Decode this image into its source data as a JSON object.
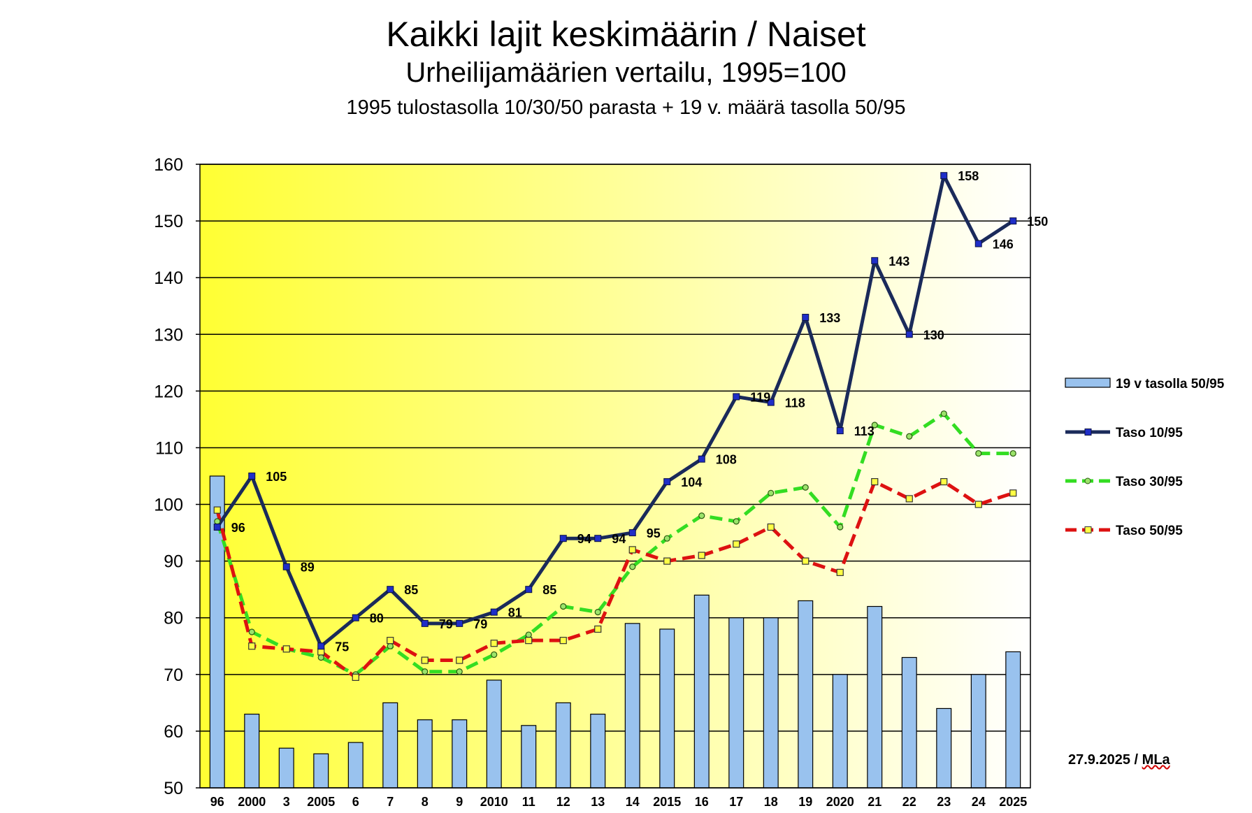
{
  "title": "Kaikki lajit keskimäärin / Naiset",
  "subtitle": "Urheilijamäärien vertailu, 1995=100",
  "subtitle2": "1995 tulostasolla 10/30/50 parasta + 19 v. määrä tasolla 50/95",
  "stamp_date": "27.9.2025 / ",
  "stamp_author": "MLa",
  "chart_data": {
    "type": "bar",
    "categories": [
      "96",
      "2000",
      "3",
      "2005",
      "6",
      "7",
      "8",
      "9",
      "2010",
      "11",
      "12",
      "13",
      "14",
      "2015",
      "16",
      "17",
      "18",
      "19",
      "2020",
      "21",
      "22",
      "23",
      "24",
      "2025"
    ],
    "ylim": [
      50,
      160
    ],
    "yticks": [
      50,
      60,
      70,
      80,
      90,
      100,
      110,
      120,
      130,
      140,
      150,
      160
    ],
    "grid": true,
    "background_gradient": [
      "#ffff33",
      "#ffffff"
    ],
    "legend_position": "right",
    "series": [
      {
        "name": "19 v tasolla 50/95",
        "kind": "bar",
        "color": "#99c2ee",
        "values": [
          105,
          63,
          57,
          56,
          58,
          65,
          62,
          62,
          69,
          61,
          65,
          63,
          79,
          78,
          84,
          80,
          80,
          83,
          70,
          82,
          73,
          64,
          70,
          74
        ]
      },
      {
        "name": "Taso 10/95",
        "kind": "line",
        "color": "#1a2a5a",
        "marker_color": "#1f2ec8",
        "marker": "square",
        "values": [
          96,
          105,
          89,
          75,
          80,
          85,
          79,
          79,
          81,
          85,
          94,
          94,
          95,
          104,
          108,
          119,
          118,
          133,
          113,
          143,
          130,
          158,
          146,
          150
        ],
        "labels": [
          "96",
          "105",
          "89",
          "75",
          "80",
          "85",
          "79",
          "79",
          "81",
          "85",
          "94",
          "94",
          "95",
          "104",
          "108",
          "119",
          "118",
          "133",
          "113",
          "143",
          "130",
          "158",
          "146",
          "150"
        ]
      },
      {
        "name": "Taso 30/95",
        "kind": "line",
        "color": "#33dd22",
        "marker": "circle",
        "dash": true,
        "values": [
          97,
          77.5,
          74.5,
          73,
          70,
          75,
          70.5,
          70.5,
          73.5,
          77,
          82,
          81,
          89,
          94,
          98,
          97,
          102,
          103,
          96,
          114,
          112,
          116,
          109,
          109
        ]
      },
      {
        "name": "Taso 50/95",
        "kind": "line",
        "color": "#dd1111",
        "marker": "square-yellow",
        "dash": true,
        "values": [
          99,
          75,
          74.5,
          74,
          69.5,
          76,
          72.5,
          72.5,
          75.5,
          76,
          76,
          78,
          92,
          90,
          91,
          93,
          96,
          90,
          88,
          104,
          101,
          104,
          100,
          102
        ]
      }
    ]
  }
}
